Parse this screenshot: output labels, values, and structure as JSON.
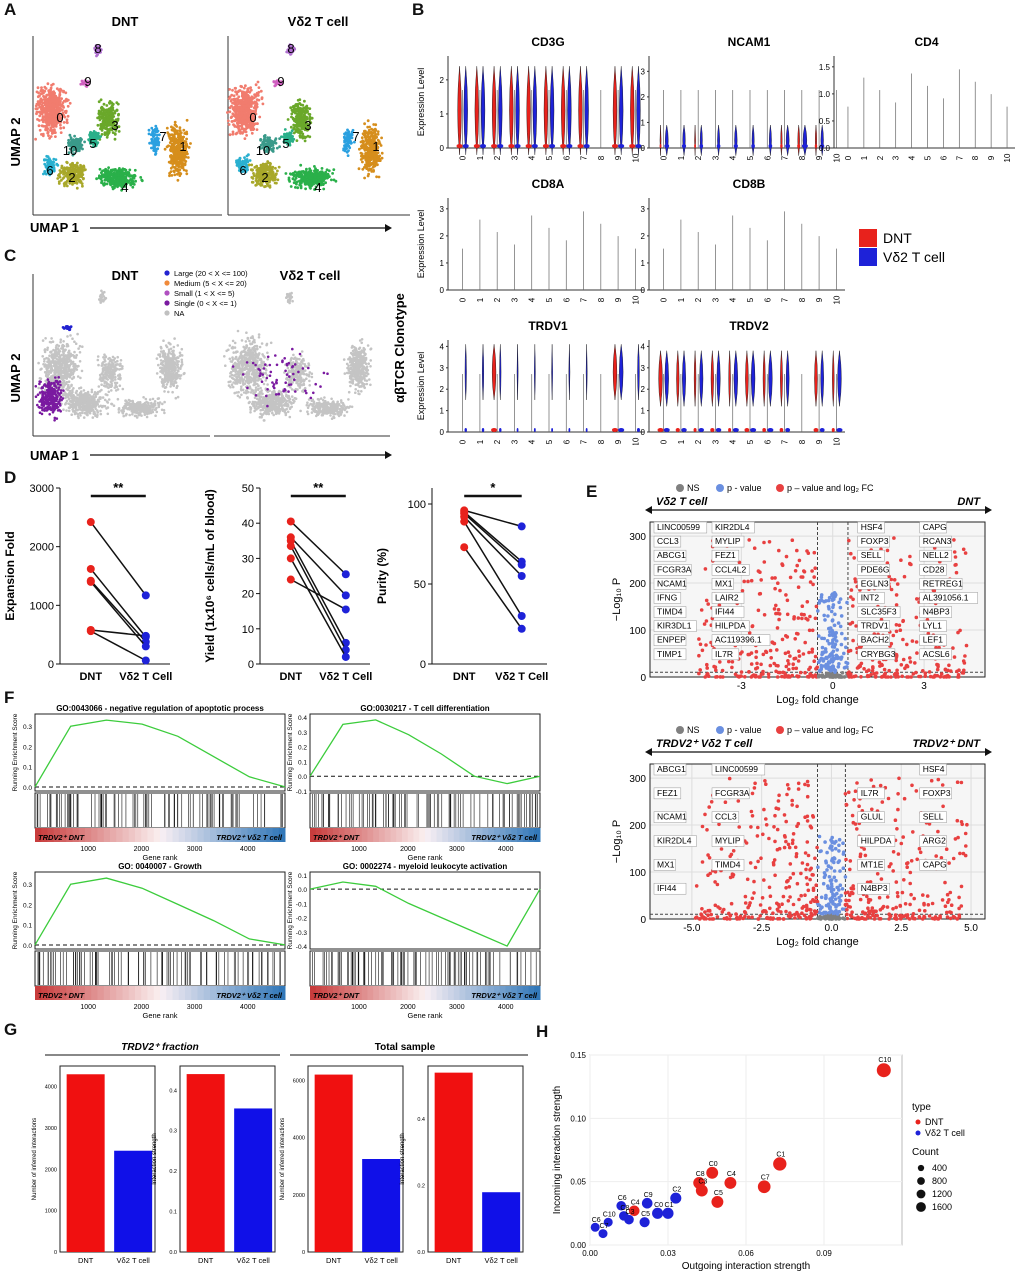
{
  "panels": {
    "A": "A",
    "B": "B",
    "C": "C",
    "D": "D",
    "E": "E",
    "F": "F",
    "G": "G",
    "H": "H"
  },
  "umap_a": {
    "titles": [
      "DNT",
      "Vδ2 T cell"
    ],
    "xlabel": "UMAP 1",
    "ylabel": "UMAP 2",
    "clusters": [
      "0",
      "1",
      "2",
      "3",
      "4",
      "5",
      "6",
      "7",
      "8",
      "9",
      "10"
    ]
  },
  "violin": {
    "genes": [
      "CD3G",
      "NCAM1",
      "CD4",
      "CD8A",
      "CD8B",
      "TRDV1",
      "TRDV2"
    ],
    "ylabel": "Expression Level",
    "categories": [
      "0",
      "1",
      "2",
      "3",
      "4",
      "5",
      "6",
      "7",
      "8",
      "9",
      "10"
    ],
    "legend": [
      {
        "name": "DNT",
        "color": "#e8221c"
      },
      {
        "name": "Vδ2 T cell",
        "color": "#1e22d8"
      }
    ],
    "yticks": {
      "CD3G": [
        "0",
        "1",
        "2"
      ],
      "NCAM1": [
        "0",
        "1",
        "2",
        "3"
      ],
      "CD4": [
        "0.0",
        "0.5",
        "1.0",
        "1.5"
      ],
      "CD8A": [
        "0",
        "1",
        "2",
        "3"
      ],
      "CD8B": [
        "0",
        "1",
        "2",
        "3"
      ],
      "TRDV1": [
        "0",
        "1",
        "2",
        "3",
        "4"
      ],
      "TRDV2": [
        "0",
        "1",
        "2",
        "3",
        "4"
      ]
    }
  },
  "umap_c": {
    "titles": [
      "DNT",
      "Vδ2 T cell"
    ],
    "xlabel": "UMAP 1",
    "ylabel": "UMAP 2",
    "side_label": "αβTCR Clonotype",
    "legend": [
      {
        "name": "Large (20 < X <= 100)",
        "color": "#2222d0"
      },
      {
        "name": "Medium (5 < X <= 20)",
        "color": "#f08a3a"
      },
      {
        "name": "Small (1 < X <= 5)",
        "color": "#b050c0"
      },
      {
        "name": "Single (0 < X <= 1)",
        "color": "#7a1aa0"
      },
      {
        "name": "NA",
        "color": "#c0c0c0"
      }
    ]
  },
  "chart_data": [
    {
      "type": "scatter",
      "panel": "D1",
      "ylabel": "Expansion Fold",
      "categories": [
        "DNT",
        "Vδ2 T Cell"
      ],
      "yticks": [
        "0",
        "1000",
        "2000",
        "3000"
      ],
      "ylim": [
        0,
        3000
      ],
      "sig": "**",
      "pairs": [
        [
          2420,
          1170
        ],
        [
          1620,
          460
        ],
        [
          1420,
          380
        ],
        [
          1400,
          300
        ],
        [
          580,
          480
        ],
        [
          560,
          60
        ]
      ]
    },
    {
      "type": "scatter",
      "panel": "D2",
      "ylabel": "Yield (1x10⁶ cells/mL of blood)",
      "categories": [
        "DNT",
        "Vδ2 T Cell"
      ],
      "yticks": [
        "0",
        "10",
        "20",
        "30",
        "40",
        "50"
      ],
      "ylim": [
        0,
        50
      ],
      "sig": "**",
      "pairs": [
        [
          40.5,
          25.5
        ],
        [
          36,
          19.5
        ],
        [
          35,
          6
        ],
        [
          33.5,
          4
        ],
        [
          30,
          2
        ],
        [
          24,
          15.5
        ]
      ]
    },
    {
      "type": "scatter",
      "panel": "D3",
      "ylabel": "Purity (%)",
      "categories": [
        "DNT",
        "Vδ2 T Cell"
      ],
      "yticks": [
        "0",
        "50",
        "100"
      ],
      "ylim": [
        0,
        110
      ],
      "sig": "*",
      "pairs": [
        [
          96,
          86
        ],
        [
          95,
          64
        ],
        [
          94,
          62
        ],
        [
          92,
          55
        ],
        [
          89,
          30
        ],
        [
          73,
          22
        ]
      ]
    },
    {
      "type": "bar",
      "panel": "G1",
      "group": "TRDV2⁺ fraction",
      "ylabel": "Number of inferred interactions",
      "categories": [
        "DNT",
        "Vδ2 T cell"
      ],
      "values": [
        4300,
        2450
      ],
      "ylim": [
        0,
        4500
      ],
      "yticks": [
        "0",
        "1000",
        "2000",
        "3000",
        "4000"
      ]
    },
    {
      "type": "bar",
      "panel": "G2",
      "group": "TRDV2⁺ fraction",
      "ylabel": "Interaction strength",
      "categories": [
        "DNT",
        "Vδ2 T cell"
      ],
      "values": [
        0.44,
        0.355
      ],
      "ylim": [
        0,
        0.46
      ],
      "yticks": [
        "0.0",
        "0.1",
        "0.2",
        "0.3",
        "0.4"
      ]
    },
    {
      "type": "bar",
      "panel": "G3",
      "group": "Total sample",
      "ylabel": "Number of inferred interactions",
      "categories": [
        "DNT",
        "Vδ2 T cell"
      ],
      "values": [
        6200,
        3250
      ],
      "ylim": [
        0,
        6500
      ],
      "yticks": [
        "0",
        "2000",
        "4000",
        "6000"
      ]
    },
    {
      "type": "bar",
      "panel": "G4",
      "group": "Total sample",
      "ylabel": "Interaction strength",
      "categories": [
        "DNT",
        "Vδ2 T cell"
      ],
      "values": [
        0.54,
        0.18
      ],
      "ylim": [
        0,
        0.56
      ],
      "yticks": [
        "0.0",
        "0.2",
        "0.4"
      ]
    },
    {
      "type": "scatter",
      "panel": "H",
      "xlabel": "Outgoing interaction strength",
      "ylabel": "Incoming interaction strength",
      "xlim": [
        0,
        0.12
      ],
      "ylim": [
        0,
        0.15
      ],
      "xticks": [
        "0.00",
        "0.03",
        "0.06",
        "0.09"
      ],
      "yticks": [
        "0.00",
        "0.05",
        "0.10",
        "0.15"
      ],
      "points": [
        {
          "label": "C10",
          "x": 0.113,
          "y": 0.138,
          "type": "DNT",
          "size": 1600
        },
        {
          "label": "C1",
          "x": 0.073,
          "y": 0.064,
          "type": "DNT",
          "size": 1400
        },
        {
          "label": "C7",
          "x": 0.067,
          "y": 0.046,
          "type": "DNT",
          "size": 1200
        },
        {
          "label": "C0",
          "x": 0.047,
          "y": 0.057,
          "type": "DNT",
          "size": 1000
        },
        {
          "label": "C4",
          "x": 0.054,
          "y": 0.049,
          "type": "DNT",
          "size": 1000
        },
        {
          "label": "C8",
          "x": 0.042,
          "y": 0.049,
          "type": "DNT",
          "size": 1000
        },
        {
          "label": "C3",
          "x": 0.043,
          "y": 0.043,
          "type": "DNT",
          "size": 1000
        },
        {
          "label": "C5",
          "x": 0.049,
          "y": 0.034,
          "type": "DNT",
          "size": 1000
        },
        {
          "label": "C2",
          "x": 0.033,
          "y": 0.037,
          "type": "Vδ2 T cell",
          "size": 800
        },
        {
          "label": "C9",
          "x": 0.022,
          "y": 0.033,
          "type": "Vδ2 T cell",
          "size": 700
        },
        {
          "label": "C1",
          "x": 0.03,
          "y": 0.025,
          "type": "Vδ2 T cell",
          "size": 800
        },
        {
          "label": "C0",
          "x": 0.026,
          "y": 0.025,
          "type": "Vδ2 T cell",
          "size": 800
        },
        {
          "label": "C4",
          "x": 0.017,
          "y": 0.027,
          "type": "DNT",
          "size": 700
        },
        {
          "label": "C6",
          "x": 0.012,
          "y": 0.031,
          "type": "Vδ2 T cell",
          "size": 500
        },
        {
          "label": "C8",
          "x": 0.013,
          "y": 0.023,
          "type": "Vδ2 T cell",
          "size": 500
        },
        {
          "label": "C3",
          "x": 0.015,
          "y": 0.02,
          "type": "Vδ2 T cell",
          "size": 500
        },
        {
          "label": "C5",
          "x": 0.021,
          "y": 0.018,
          "type": "Vδ2 T cell",
          "size": 600
        },
        {
          "label": "C10",
          "x": 0.007,
          "y": 0.018,
          "type": "Vδ2 T cell",
          "size": 400
        },
        {
          "label": "C6",
          "x": 0.002,
          "y": 0.014,
          "type": "Vδ2 T cell",
          "size": 400
        },
        {
          "label": "C7",
          "x": 0.005,
          "y": 0.009,
          "type": "Vδ2 T cell",
          "size": 400
        }
      ]
    }
  ],
  "volcano": {
    "legend": [
      "NS",
      "p - value",
      "p – value and log₂ FC"
    ],
    "legend_colors": [
      "#808080",
      "#6a8fe0",
      "#e84040"
    ],
    "top": {
      "left_label": "Vδ2 T cell",
      "right_label": "DNT",
      "ylabel": "−Log₁₀ P",
      "xlabel": "Log₂ fold change",
      "xticks": [
        "-3",
        "0",
        "3"
      ],
      "yticks": [
        "0",
        "100",
        "200",
        "300"
      ],
      "genes": [
        "LINC00599",
        "KIR2DL4",
        "CCL3",
        "MYLIP",
        "ABCG1",
        "FEZ1",
        "FCGR3A",
        "CCL4L2",
        "NCAM1",
        "MX1",
        "IFNG",
        "LAIR2",
        "TIMD4",
        "IFI44",
        "KIR3DL1",
        "HILPDA",
        "ENPEP",
        "AC119396.1",
        "TIMP1",
        "IL7R",
        "HSF4",
        "CAPG",
        "FOXP3",
        "RCAN3",
        "SELL",
        "NELL2",
        "PDE6G",
        "CD28",
        "EGLN3",
        "RETREG1",
        "INT2",
        "AL391056.1",
        "SLC35F3",
        "N4BP3",
        "TRDV1",
        "LYL1",
        "BACH2",
        "LEF1",
        "CRYBG3",
        "ACSL6"
      ]
    },
    "bottom": {
      "left_label": "TRDV2⁺ Vδ2 T cell",
      "right_label": "TRDV2⁺ DNT",
      "ylabel": "−Log₁₀ P",
      "xlabel": "Log₂ fold change",
      "xticks": [
        "-5.0",
        "-2.5",
        "0.0",
        "2.5",
        "5.0"
      ],
      "yticks": [
        "0",
        "100",
        "200",
        "300"
      ],
      "genes": [
        "ABCG1",
        "LINC00599",
        "FEZ1",
        "FCGR3A",
        "NCAM1",
        "CCL3",
        "KIR2DL4",
        "MYLIP",
        "MX1",
        "TIMD4",
        "IFI44",
        "HSF4",
        "IL7R",
        "FOXP3",
        "GLUL",
        "SELL",
        "HILPDA",
        "ARG2",
        "MT1E",
        "CAPG",
        "N4BP3"
      ]
    }
  },
  "gsea": {
    "ylabel": "Running Enrichment Score",
    "xlabel": "Gene rank",
    "xticks": [
      "1000",
      "2000",
      "3000",
      "4000"
    ],
    "bar_left": "TRDV2⁺ DNT",
    "bar_right": "TRDV2⁺ Vδ2 T cell",
    "plots": [
      {
        "title": "GO:0043066 - negative regulation of apoptotic process",
        "yticks": [
          "0.0",
          "0.1",
          "0.2",
          "0.3"
        ]
      },
      {
        "title": "GO:0030217 - T cell differentiation",
        "yticks": [
          "-0.1",
          "0.0",
          "0.1",
          "0.2",
          "0.3",
          "0.4"
        ]
      },
      {
        "title": "GO: 0040007 - Growth",
        "yticks": [
          "0.0",
          "0.1",
          "0.2",
          "0.3"
        ]
      },
      {
        "title": "GO: 0002274 - myeloid leukocyte activation",
        "yticks": [
          "-0.4",
          "-0.3",
          "-0.2",
          "-0.1",
          "0.0",
          "0.1"
        ]
      }
    ]
  },
  "h_legend": {
    "type_title": "type",
    "types": [
      {
        "name": "DNT",
        "color": "#e8221c"
      },
      {
        "name": "Vδ2 T cell",
        "color": "#1e22d8"
      }
    ],
    "count_title": "Count",
    "counts": [
      "400",
      "800",
      "1200",
      "1600"
    ]
  },
  "g_groups": [
    "TRDV2⁺ fraction",
    "Total sample"
  ]
}
